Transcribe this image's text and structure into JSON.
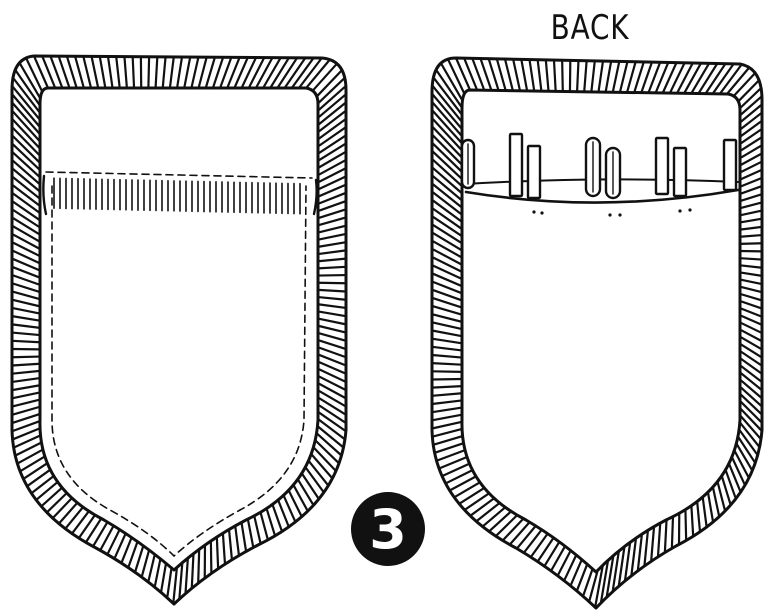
{
  "diagram": {
    "back_label": "BACK",
    "step_number": "3"
  },
  "colors": {
    "ink": "#111111",
    "paper": "#ffffff"
  },
  "icons": {
    "front_pocket": "pocket-front-icon",
    "back_pocket": "pocket-back-icon",
    "pencil": "pencil-icon"
  }
}
